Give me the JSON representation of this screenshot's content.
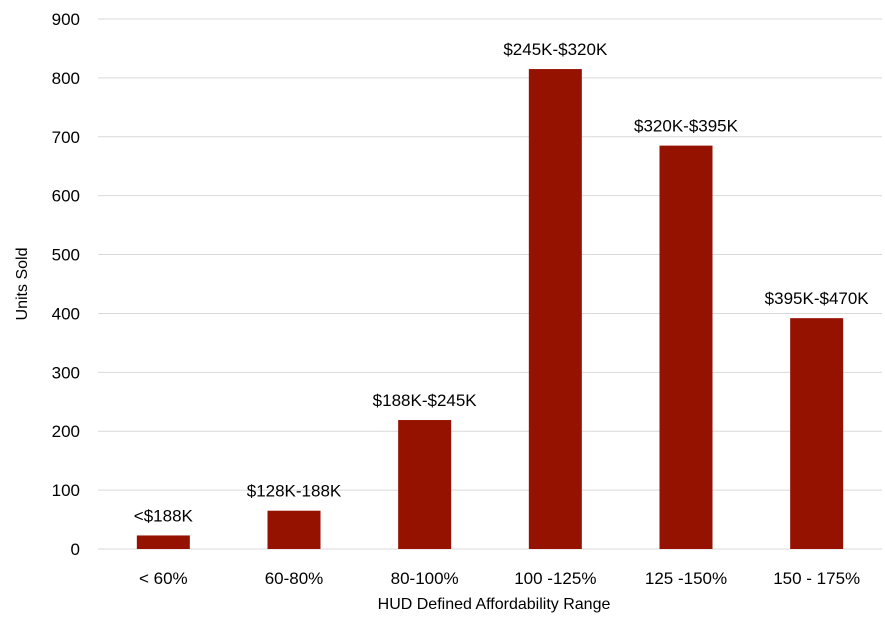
{
  "chart_data": {
    "type": "bar",
    "categories": [
      "< 60%",
      "60-80%",
      "80-100%",
      "100 -125%",
      "125 -150%",
      "150 - 175%"
    ],
    "values": [
      23,
      65,
      219,
      815,
      685,
      392
    ],
    "bar_labels": [
      "<$188K",
      "$128K-188K",
      "$188K-$245K",
      "$245K-$320K",
      "$320K-$395K",
      "$395K-$470K"
    ],
    "xlabel": "HUD Defined Affordability Range",
    "ylabel": "Units Sold",
    "ylim": [
      0,
      900
    ],
    "yticks": [
      "0",
      "100",
      "200",
      "300",
      "400",
      "500",
      "600",
      "700",
      "800",
      "900"
    ],
    "grid": true,
    "bar_color": "#961200",
    "gridline_color": "#d9d9d9"
  }
}
